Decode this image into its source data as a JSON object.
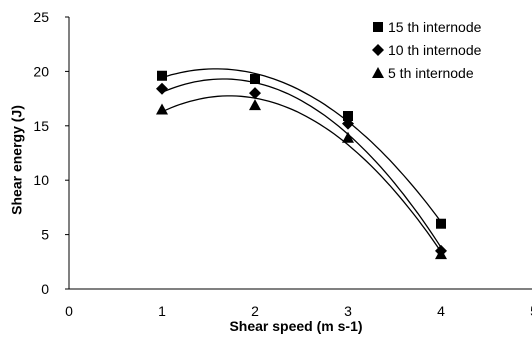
{
  "chart_data": {
    "type": "scatter",
    "title": "",
    "xlabel": "Shear speed  (m s-1)",
    "ylabel": "Shear energy (J)",
    "xlim": [
      0,
      5
    ],
    "ylim": [
      0,
      25
    ],
    "xticks": [
      "0",
      "1",
      "2",
      "3",
      "4",
      "5"
    ],
    "yticks": [
      "0",
      "5",
      "10",
      "15",
      "20",
      "25"
    ],
    "grid": false,
    "legend_position": "top-right",
    "trendline": "polynomial",
    "series": [
      {
        "name": "15 th internode",
        "marker": "square",
        "x": [
          1,
          2,
          3,
          4
        ],
        "y": [
          19.6,
          19.3,
          15.9,
          6.0
        ]
      },
      {
        "name": "10 th internode",
        "marker": "diamond",
        "x": [
          1,
          2,
          3,
          4
        ],
        "y": [
          18.4,
          18.0,
          15.2,
          3.5
        ]
      },
      {
        "name": "5 th internode",
        "marker": "triangle",
        "x": [
          1,
          2,
          3,
          4
        ],
        "y": [
          16.5,
          16.9,
          13.9,
          3.2
        ]
      }
    ]
  },
  "colors": {
    "marker": "#000000",
    "axis": "#000000",
    "background": "#ffffff"
  }
}
